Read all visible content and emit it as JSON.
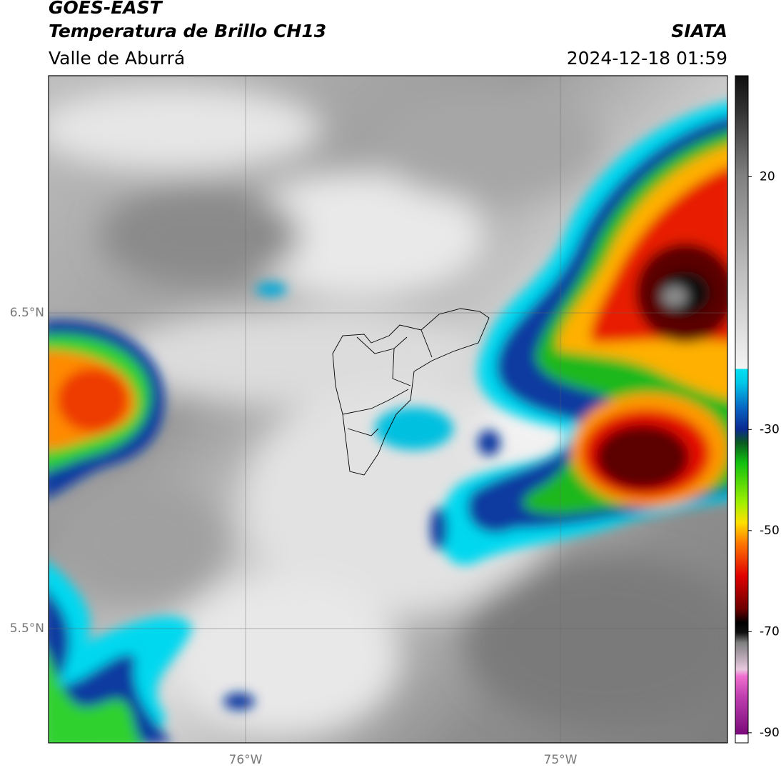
{
  "header": {
    "title": "GOES-EAST",
    "subtitle": "Temperatura de Brillo CH13",
    "region": "Valle de Aburrá",
    "source": "SIATA",
    "datetime": "2024-12-18 01:59"
  },
  "map": {
    "lat_labels": [
      "6.5°N",
      "5.5°N"
    ],
    "lon_labels": [
      "76°W",
      "75°W"
    ]
  },
  "colorbar": {
    "lim": [
      -92,
      40
    ],
    "ticks": [
      20,
      -30,
      -50,
      -70,
      -90
    ]
  }
}
